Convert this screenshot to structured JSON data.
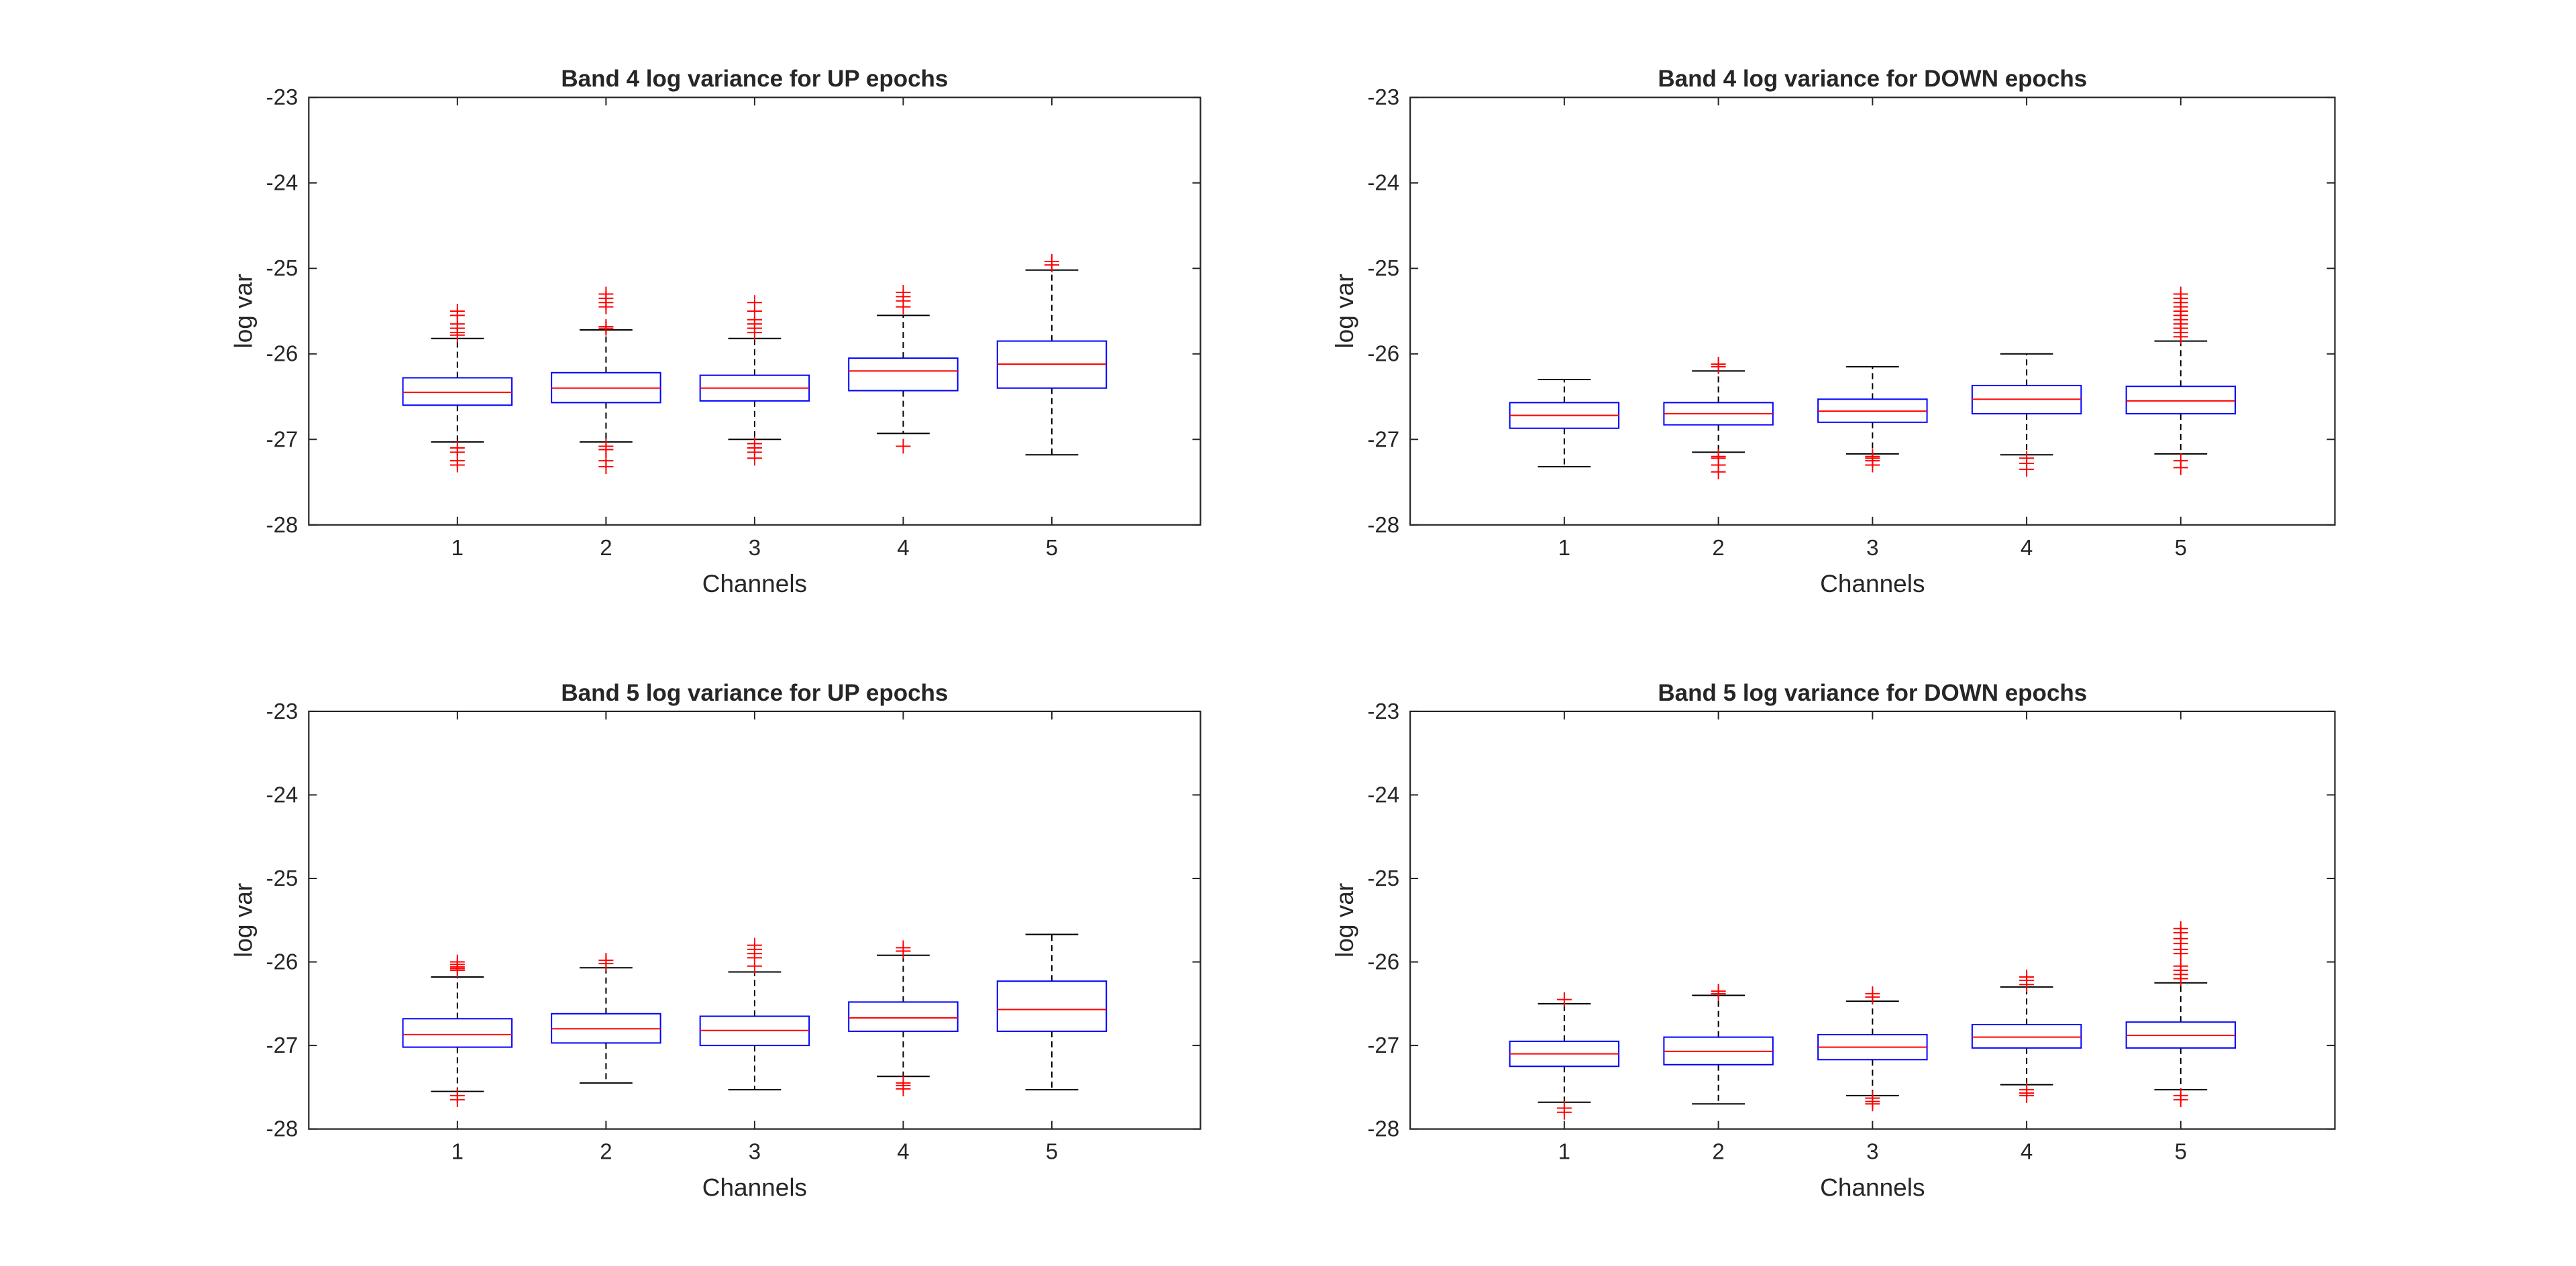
{
  "chart_data": [
    {
      "type": "boxplot",
      "title": "Band 4 log variance for UP epochs",
      "xlabel": "Channels",
      "ylabel": "log var",
      "ylim": [
        -28,
        -23
      ],
      "yticks": [
        "-23",
        "-24",
        "-25",
        "-26",
        "-27",
        "-28"
      ],
      "categories": [
        "1",
        "2",
        "3",
        "4",
        "5"
      ],
      "boxes": [
        {
          "whisker_low": -27.03,
          "q1": -26.6,
          "median": -26.45,
          "q3": -26.28,
          "whisker_high": -25.82,
          "outliers_high": [
            -25.5,
            -25.55,
            -25.65,
            -25.7,
            -25.75,
            -25.78
          ],
          "outliers_low": [
            -27.1,
            -27.15,
            -27.25,
            -27.3
          ]
        },
        {
          "whisker_low": -27.03,
          "q1": -26.57,
          "median": -26.4,
          "q3": -26.22,
          "whisker_high": -25.72,
          "outliers_high": [
            -25.3,
            -25.35,
            -25.4,
            -25.45,
            -25.68,
            -25.7
          ],
          "outliers_low": [
            -27.08,
            -27.12,
            -27.25,
            -27.32
          ]
        },
        {
          "whisker_low": -27.0,
          "q1": -26.55,
          "median": -26.4,
          "q3": -26.25,
          "whisker_high": -25.82,
          "outliers_high": [
            -25.4,
            -25.5,
            -25.6,
            -25.65,
            -25.7,
            -25.75
          ],
          "outliers_low": [
            -27.05,
            -27.1,
            -27.15,
            -27.22
          ]
        },
        {
          "whisker_low": -26.93,
          "q1": -26.43,
          "median": -26.2,
          "q3": -26.05,
          "whisker_high": -25.55,
          "outliers_high": [
            -25.28,
            -25.33,
            -25.38,
            -25.45
          ],
          "outliers_low": [
            -27.08
          ]
        },
        {
          "whisker_low": -27.18,
          "q1": -26.4,
          "median": -26.12,
          "q3": -25.85,
          "whisker_high": -25.02,
          "outliers_high": [
            -24.92,
            -24.96
          ],
          "outliers_low": []
        }
      ]
    },
    {
      "type": "boxplot",
      "title": "Band 4 log variance for DOWN epochs",
      "xlabel": "Channels",
      "ylabel": "log var",
      "ylim": [
        -28,
        -23
      ],
      "yticks": [
        "-23",
        "-24",
        "-25",
        "-26",
        "-27",
        "-28"
      ],
      "categories": [
        "1",
        "2",
        "3",
        "4",
        "5"
      ],
      "boxes": [
        {
          "whisker_low": -27.32,
          "q1": -26.87,
          "median": -26.72,
          "q3": -26.57,
          "whisker_high": -26.3,
          "outliers_high": [],
          "outliers_low": []
        },
        {
          "whisker_low": -27.15,
          "q1": -26.83,
          "median": -26.7,
          "q3": -26.57,
          "whisker_high": -26.2,
          "outliers_high": [
            -26.12,
            -26.15
          ],
          "outliers_low": [
            -27.2,
            -27.22,
            -27.3,
            -27.38
          ]
        },
        {
          "whisker_low": -27.17,
          "q1": -26.8,
          "median": -26.67,
          "q3": -26.53,
          "whisker_high": -26.15,
          "outliers_high": [],
          "outliers_low": [
            -27.2,
            -27.22,
            -27.25,
            -27.3
          ]
        },
        {
          "whisker_low": -27.18,
          "q1": -26.7,
          "median": -26.53,
          "q3": -26.37,
          "whisker_high": -26.0,
          "outliers_high": [],
          "outliers_low": [
            -27.22,
            -27.28,
            -27.35
          ]
        },
        {
          "whisker_low": -27.17,
          "q1": -26.7,
          "median": -26.55,
          "q3": -26.38,
          "whisker_high": -25.85,
          "outliers_high": [
            -25.3,
            -25.35,
            -25.4,
            -25.45,
            -25.5,
            -25.55,
            -25.6,
            -25.65,
            -25.7,
            -25.75,
            -25.8
          ],
          "outliers_low": [
            -27.25,
            -27.33
          ]
        }
      ]
    },
    {
      "type": "boxplot",
      "title": "Band 5 log variance for UP epochs",
      "xlabel": "Channels",
      "ylabel": "log var",
      "ylim": [
        -28,
        -23
      ],
      "yticks": [
        "-23",
        "-24",
        "-25",
        "-26",
        "-27",
        "-28"
      ],
      "categories": [
        "1",
        "2",
        "3",
        "4",
        "5"
      ],
      "boxes": [
        {
          "whisker_low": -27.55,
          "q1": -27.02,
          "median": -26.87,
          "q3": -26.68,
          "whisker_high": -26.18,
          "outliers_high": [
            -26.0,
            -26.03,
            -26.06,
            -26.08,
            -26.1
          ],
          "outliers_low": [
            -27.6,
            -27.65
          ]
        },
        {
          "whisker_low": -27.45,
          "q1": -26.97,
          "median": -26.8,
          "q3": -26.62,
          "whisker_high": -26.07,
          "outliers_high": [
            -25.98,
            -26.02
          ],
          "outliers_low": []
        },
        {
          "whisker_low": -27.53,
          "q1": -27.0,
          "median": -26.82,
          "q3": -26.65,
          "whisker_high": -26.12,
          "outliers_high": [
            -25.8,
            -25.85,
            -25.9,
            -25.95,
            -26.05
          ],
          "outliers_low": []
        },
        {
          "whisker_low": -27.37,
          "q1": -26.83,
          "median": -26.67,
          "q3": -26.48,
          "whisker_high": -25.92,
          "outliers_high": [
            -25.83,
            -25.87
          ],
          "outliers_low": [
            -27.45,
            -27.48,
            -27.52
          ]
        },
        {
          "whisker_low": -27.53,
          "q1": -26.83,
          "median": -26.57,
          "q3": -26.23,
          "whisker_high": -25.67,
          "outliers_high": [],
          "outliers_low": []
        }
      ]
    },
    {
      "type": "boxplot",
      "title": "Band 5 log variance for DOWN epochs",
      "xlabel": "Channels",
      "ylabel": "log var",
      "ylim": [
        -28,
        -23
      ],
      "yticks": [
        "-23",
        "-24",
        "-25",
        "-26",
        "-27",
        "-28"
      ],
      "categories": [
        "1",
        "2",
        "3",
        "4",
        "5"
      ],
      "boxes": [
        {
          "whisker_low": -27.68,
          "q1": -27.25,
          "median": -27.1,
          "q3": -26.95,
          "whisker_high": -26.5,
          "outliers_high": [
            -26.45
          ],
          "outliers_low": [
            -27.75,
            -27.8
          ]
        },
        {
          "whisker_low": -27.7,
          "q1": -27.23,
          "median": -27.07,
          "q3": -26.9,
          "whisker_high": -26.4,
          "outliers_high": [
            -26.35,
            -26.38
          ],
          "outliers_low": []
        },
        {
          "whisker_low": -27.6,
          "q1": -27.17,
          "median": -27.02,
          "q3": -26.87,
          "whisker_high": -26.47,
          "outliers_high": [
            -26.38,
            -26.42
          ],
          "outliers_low": [
            -27.63,
            -27.67,
            -27.7
          ]
        },
        {
          "whisker_low": -27.47,
          "q1": -27.03,
          "median": -26.9,
          "q3": -26.75,
          "whisker_high": -26.3,
          "outliers_high": [
            -26.18,
            -26.22,
            -26.27
          ],
          "outliers_low": [
            -27.53,
            -27.57,
            -27.6
          ]
        },
        {
          "whisker_low": -27.53,
          "q1": -27.03,
          "median": -26.88,
          "q3": -26.72,
          "whisker_high": -26.25,
          "outliers_high": [
            -25.6,
            -25.65,
            -25.72,
            -25.78,
            -25.85,
            -25.9,
            -26.05,
            -26.1,
            -26.15,
            -26.2
          ],
          "outliers_low": [
            -27.6,
            -27.65
          ]
        }
      ]
    }
  ]
}
